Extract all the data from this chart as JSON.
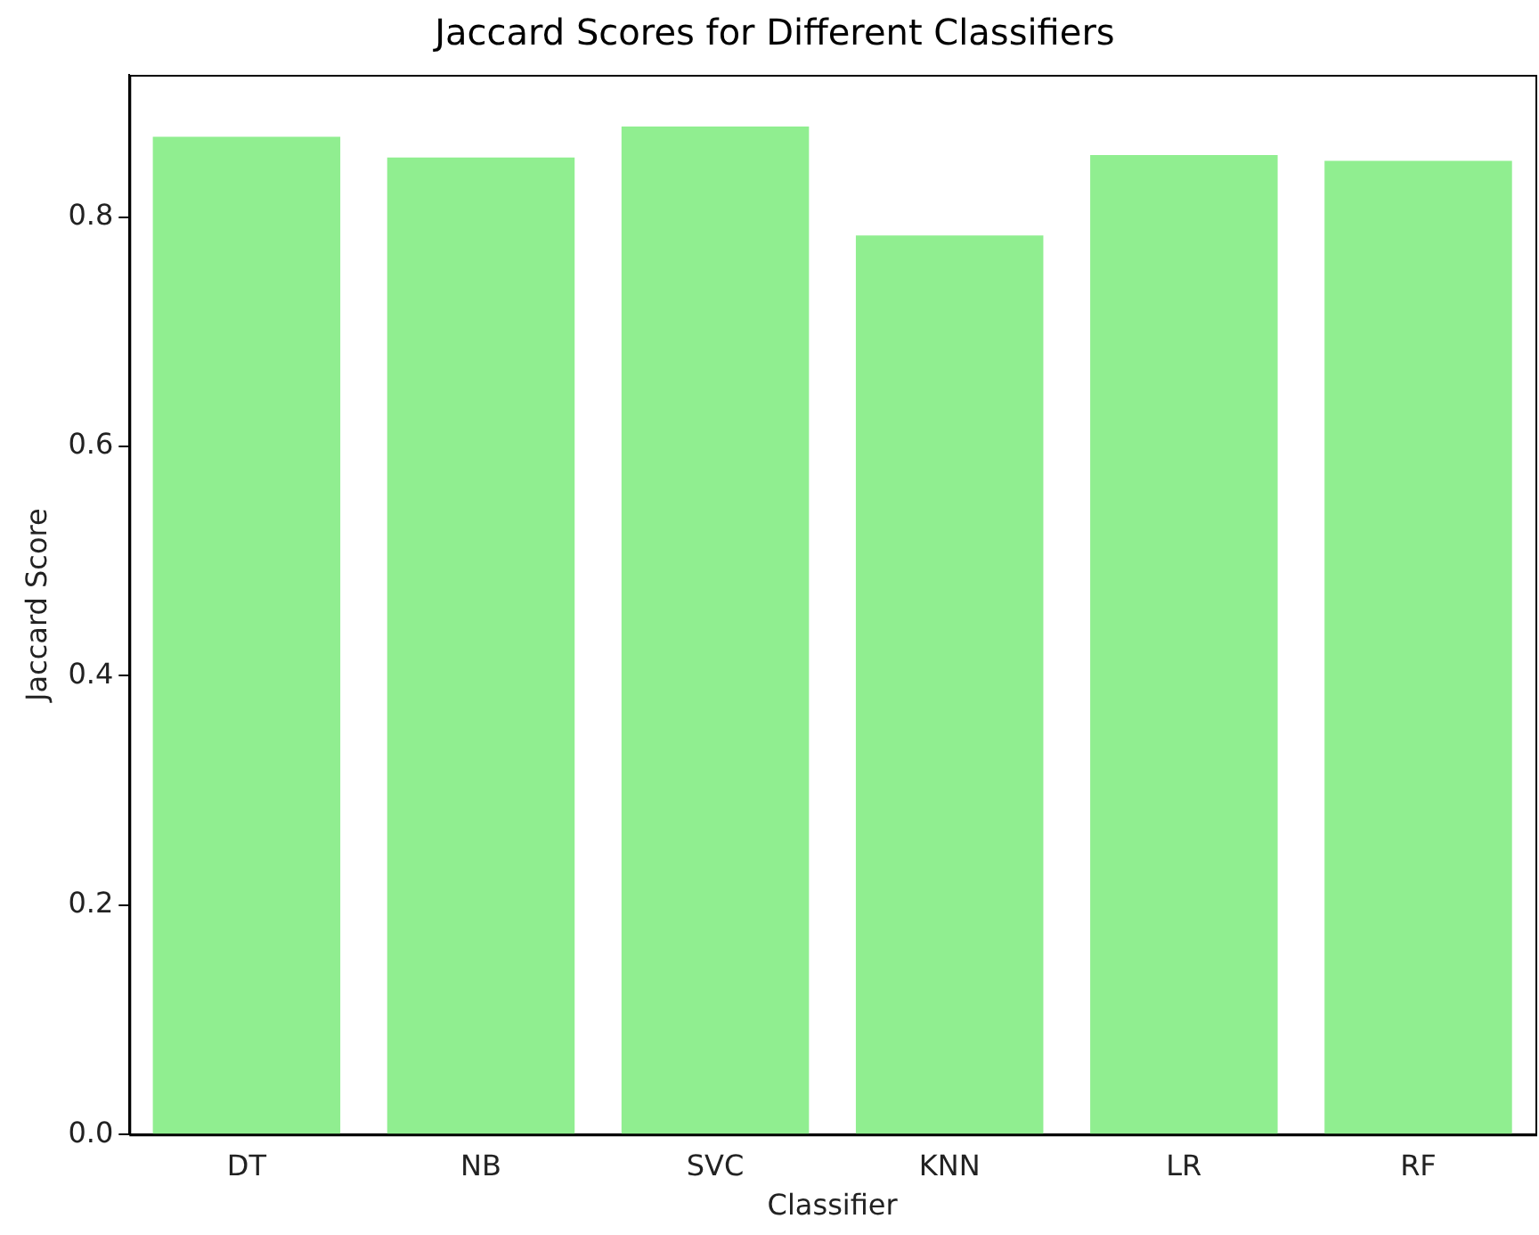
{
  "chart_data": {
    "type": "bar",
    "title": "Jaccard Scores for Different Classifiers",
    "xlabel": "Classifier",
    "ylabel": "Jaccard Score",
    "categories": [
      "DT",
      "NB",
      "SVC",
      "KNN",
      "LR",
      "RF"
    ],
    "values": [
      0.87,
      0.852,
      0.879,
      0.784,
      0.854,
      0.849
    ],
    "color": "#90ee90",
    "ylim": [
      0,
      0.924
    ],
    "yticks": [
      {
        "value": 0,
        "label": "0.0"
      },
      {
        "value": 0.2,
        "label": "0.2"
      },
      {
        "value": 0.4,
        "label": "0.4"
      },
      {
        "value": 0.6,
        "label": "0.6"
      },
      {
        "value": 0.8,
        "label": "0.8"
      }
    ],
    "grid": false,
    "legend": false
  }
}
